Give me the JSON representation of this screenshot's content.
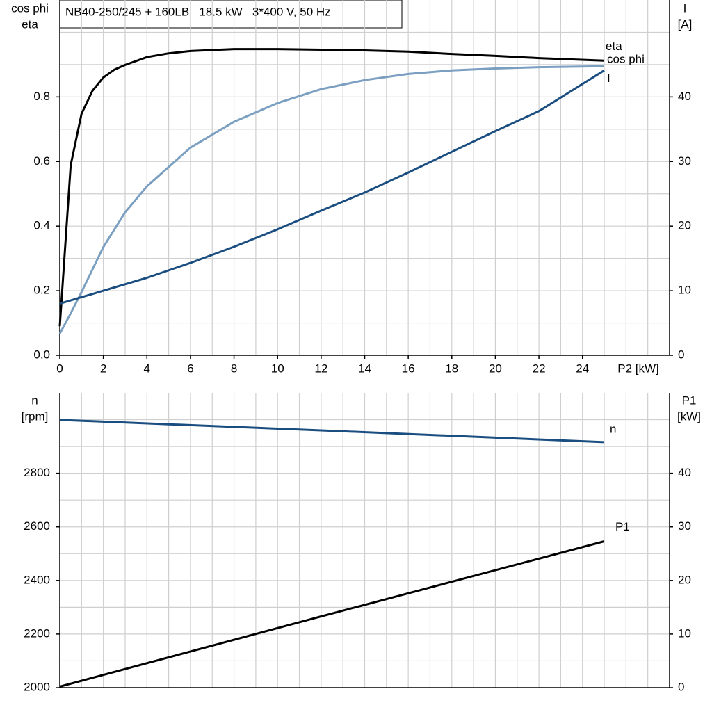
{
  "chart_data": [
    {
      "type": "line",
      "title": "NB40-250/245 + 160LB   18.5 kW   3*400 V, 50 Hz",
      "xlabel": "P2 [kW]",
      "ylabel": [
        "cos phi",
        "eta"
      ],
      "y2label": [
        "I",
        "[A]"
      ],
      "xlim": [
        0,
        28
      ],
      "ylim": [
        0,
        1.1
      ],
      "y2lim": [
        0,
        55
      ],
      "xticks": [
        0,
        2,
        4,
        6,
        8,
        10,
        12,
        14,
        16,
        18,
        20,
        22,
        24
      ],
      "yticks": [
        {
          "value": 0,
          "label": "0.0"
        },
        0.2,
        0.4,
        0.6,
        0.8
      ],
      "y2ticks": [
        0,
        10,
        20,
        30,
        40
      ],
      "xgrid": [
        1,
        2,
        3,
        4,
        5,
        6,
        7,
        8,
        9,
        10,
        11,
        12,
        13,
        14,
        15,
        16,
        17,
        18,
        19,
        20,
        21,
        22,
        23,
        24,
        25,
        26,
        27
      ],
      "ygrid": [
        0.1,
        0.2,
        0.3,
        0.4,
        0.5,
        0.6,
        0.7,
        0.8,
        0.9,
        1.0
      ],
      "series": [
        {
          "name": "eta",
          "color": "#000000",
          "x": [
            0,
            0.5,
            1,
            1.5,
            2,
            2.5,
            3,
            4,
            5,
            6,
            8,
            10,
            12,
            14,
            16,
            18,
            20,
            22,
            25
          ],
          "values": [
            0.09,
            0.589,
            0.748,
            0.819,
            0.86,
            0.884,
            0.899,
            0.923,
            0.935,
            0.942,
            0.948,
            0.948,
            0.946,
            0.944,
            0.94,
            0.933,
            0.927,
            0.92,
            0.912
          ]
        },
        {
          "name": "cos phi",
          "color": "#7a9fc0",
          "x": [
            0,
            0.5,
            1,
            2,
            3,
            4,
            6,
            8,
            10,
            12,
            14,
            16,
            18,
            20,
            22,
            25
          ],
          "values": [
            0.067,
            0.13,
            0.196,
            0.335,
            0.443,
            0.523,
            0.643,
            0.723,
            0.781,
            0.824,
            0.852,
            0.871,
            0.882,
            0.888,
            0.892,
            0.895
          ]
        },
        {
          "name": "I",
          "color": "#1a4d80",
          "axis": "y2",
          "x": [
            0,
            2,
            4,
            6,
            8,
            10,
            12,
            14,
            16,
            18,
            20,
            22,
            25
          ],
          "values": [
            8.0,
            10.0,
            12.0,
            14.3,
            16.8,
            19.5,
            22.4,
            25.2,
            28.3,
            31.5,
            34.7,
            37.8,
            44.1
          ]
        }
      ]
    },
    {
      "type": "line",
      "ylabel": [
        "n",
        "[rpm]"
      ],
      "y2label": [
        "P1",
        "[kW]"
      ],
      "xlim": [
        0,
        28
      ],
      "ylim": [
        2000,
        3100
      ],
      "y2lim": [
        0,
        55
      ],
      "yticks": [
        2000,
        2200,
        2400,
        2600,
        2800
      ],
      "y2ticks": [
        0,
        10,
        20,
        30,
        40
      ],
      "xgrid": [
        1,
        2,
        3,
        4,
        5,
        6,
        7,
        8,
        9,
        10,
        11,
        12,
        13,
        14,
        15,
        16,
        17,
        18,
        19,
        20,
        21,
        22,
        23,
        24,
        25,
        26,
        27
      ],
      "ygrid": [
        2100,
        2200,
        2300,
        2400,
        2500,
        2600,
        2700,
        2800,
        2900,
        3000
      ],
      "series": [
        {
          "name": "n",
          "color": "#1a4d80",
          "x": [
            0,
            12,
            25
          ],
          "values": [
            2999,
            2960,
            2916
          ]
        },
        {
          "name": "P1",
          "color": "#000000",
          "axis": "y2",
          "x": [
            0,
            12,
            25
          ],
          "values": [
            0.2,
            13.3,
            27.3
          ]
        }
      ]
    }
  ]
}
